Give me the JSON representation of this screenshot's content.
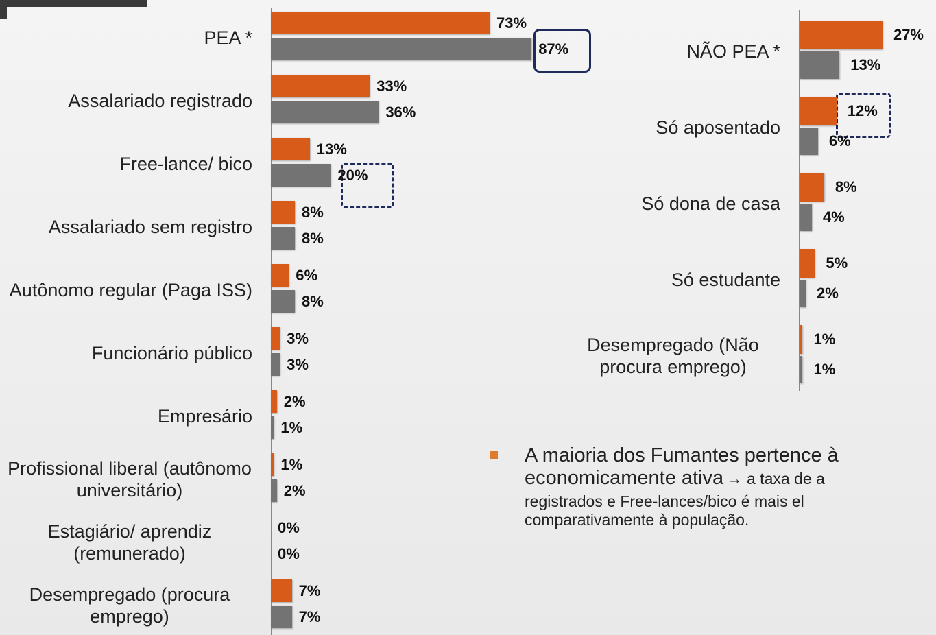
{
  "chart_data": [
    {
      "type": "bar",
      "orientation": "horizontal",
      "categories": [
        "PEA *",
        "Assalariado registrado",
        "Free-lance/ bico",
        "Assalariado sem registro",
        "Autônomo regular (Paga ISS)",
        "Funcionário público",
        "Empresário",
        "Profissional liberal (autônomo universitário)",
        "Estagiário/ aprendiz (remunerado)",
        "Desempregado (procura emprego)"
      ],
      "series": [
        {
          "color": "#d95b1a",
          "values": [
            73,
            33,
            13,
            8,
            6,
            3,
            2,
            1,
            0,
            7
          ],
          "value_labels": [
            "73%",
            "33%",
            "13%",
            "8%",
            "6%",
            "3%",
            "2%",
            "1%",
            "0%",
            "7%"
          ]
        },
        {
          "color": "#737373",
          "values": [
            87,
            36,
            20,
            8,
            8,
            3,
            1,
            2,
            0,
            7
          ],
          "value_labels": [
            "87%",
            "36%",
            "20%",
            "8%",
            "8%",
            "3%",
            "1%",
            "2%",
            "0%",
            "7%"
          ]
        }
      ]
    },
    {
      "type": "bar",
      "orientation": "horizontal",
      "categories": [
        "NÃO PEA *",
        "Só aposentado",
        "Só dona de casa",
        "Só estudante",
        "Desempregado (Não procura emprego)"
      ],
      "series": [
        {
          "color": "#d95b1a",
          "values": [
            27,
            12,
            8,
            5,
            1
          ],
          "value_labels": [
            "27%",
            "12%",
            "8%",
            "5%",
            "1%"
          ]
        },
        {
          "color": "#737373",
          "values": [
            13,
            6,
            4,
            2,
            1
          ],
          "value_labels": [
            "13%",
            "6%",
            "4%",
            "2%",
            "1%"
          ]
        }
      ]
    }
  ],
  "bullet": {
    "lines": [
      "A maioria dos Fumantes pertence à",
      "economicamente ativa",
      "→ a taxa de a",
      "registrados e Free-lances/bico é mais el",
      "comparativamente à população."
    ]
  }
}
